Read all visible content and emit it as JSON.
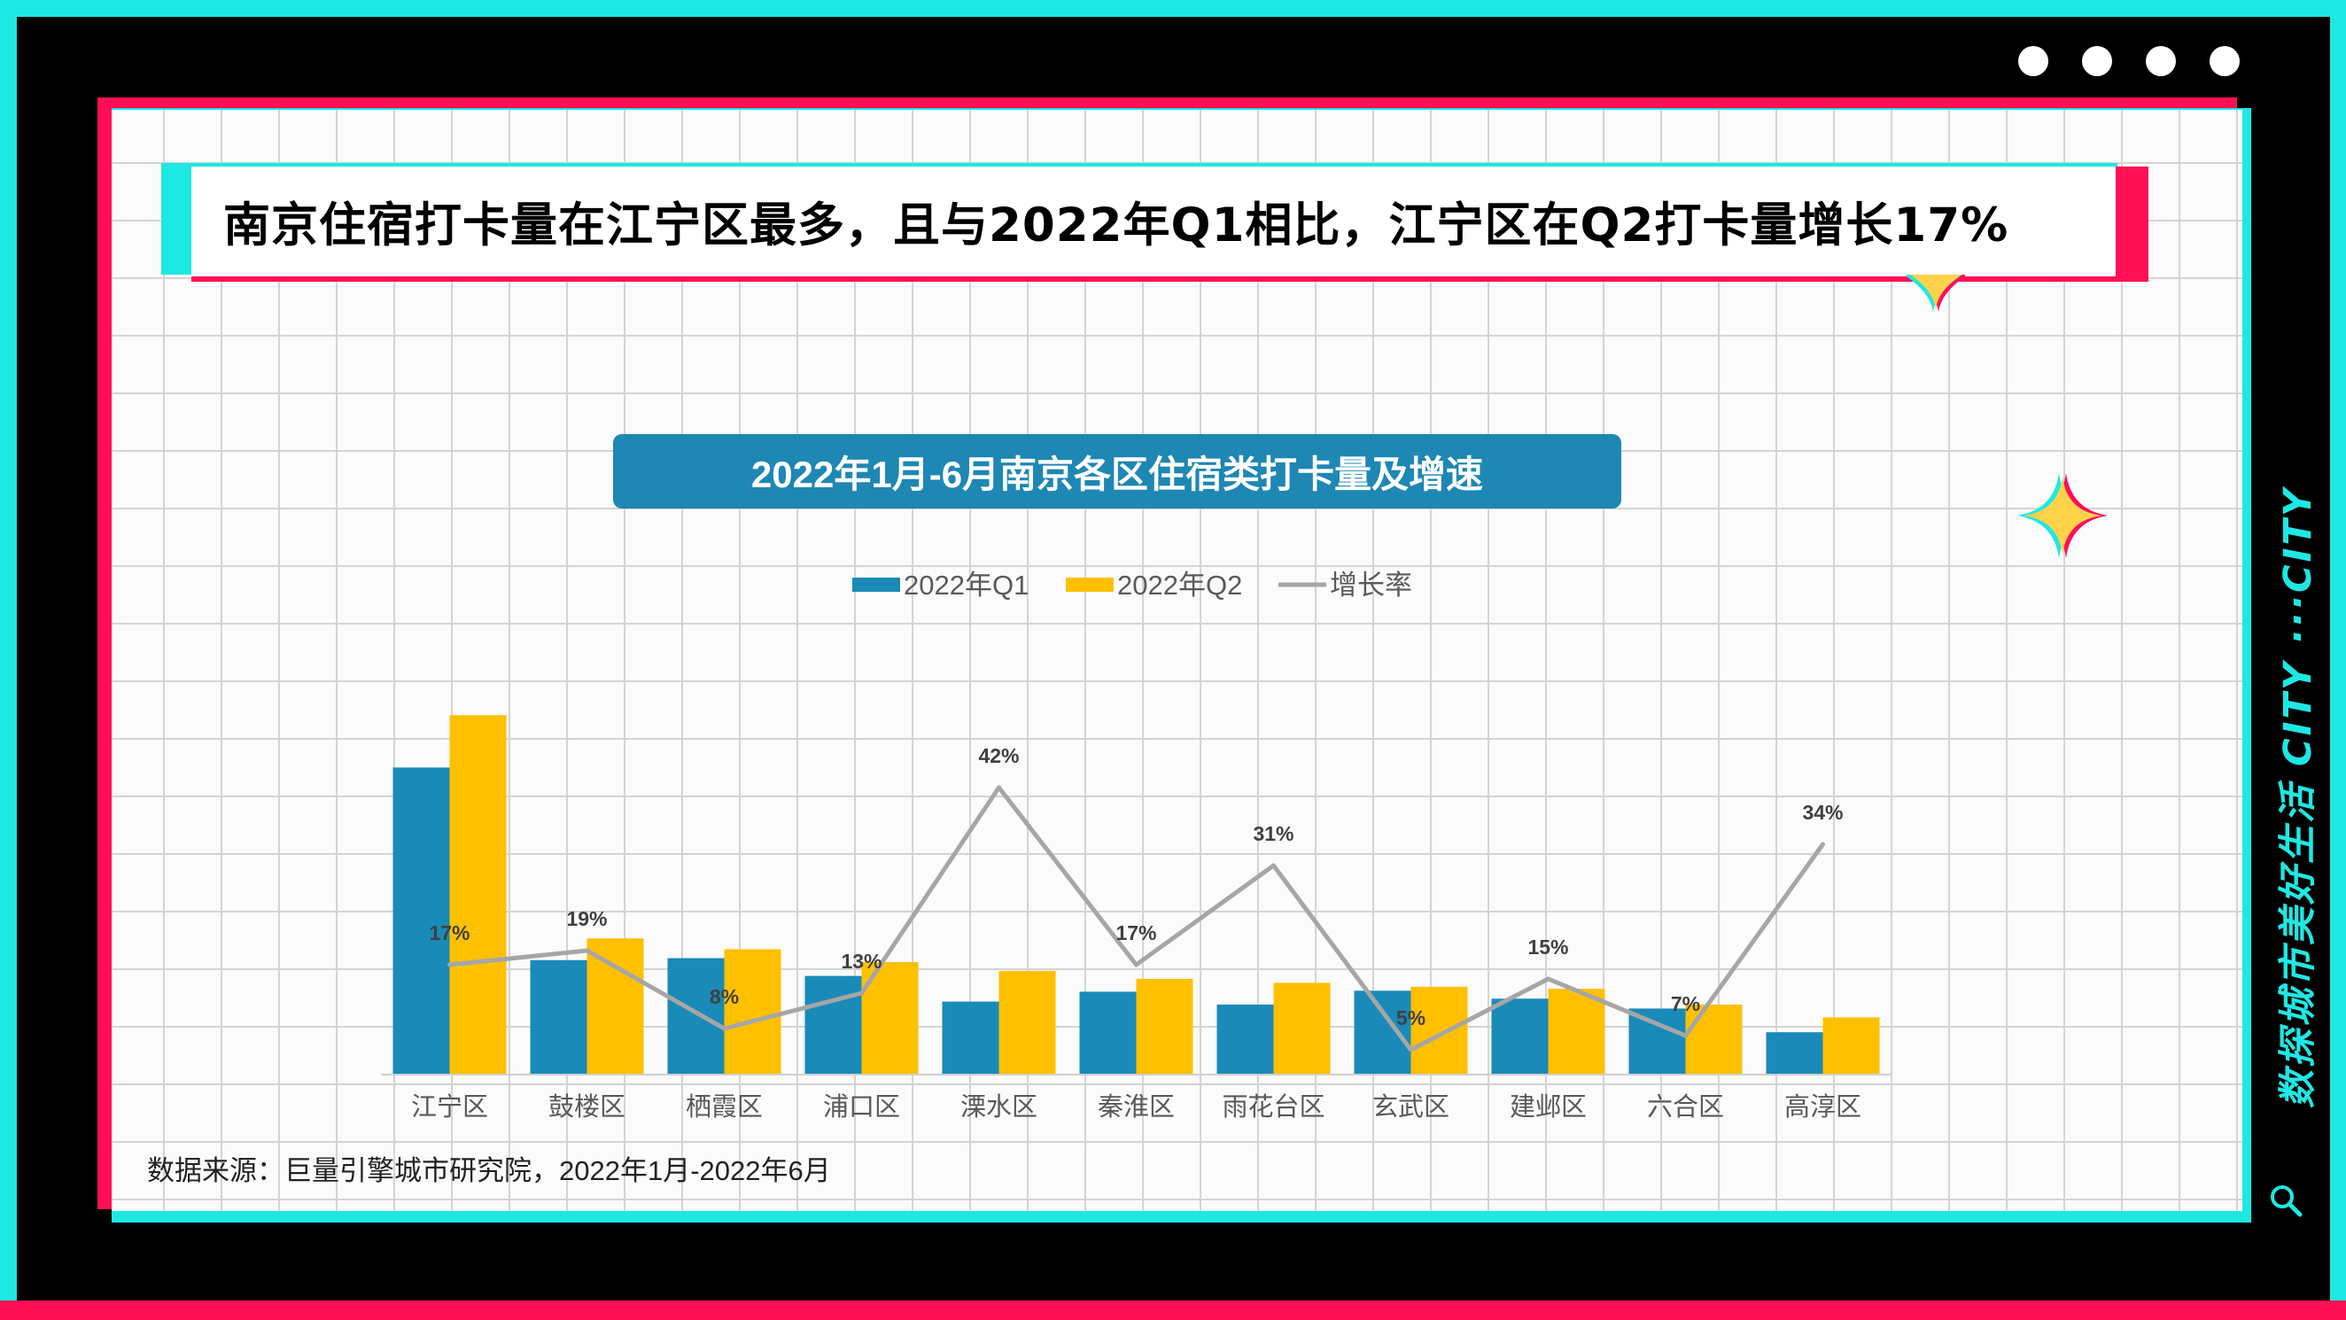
{
  "headline": "南京住宿打卡量在江宁区最多，且与2022年Q1相比，江宁区在Q2打卡量增长17%",
  "side_text": "数探城市美好生活  CITY ···CITY",
  "source": "数据来源：巨量引擎城市研究院，2022年1月-2022年6月",
  "colors": {
    "q1": "#1a8ab8",
    "q2": "#ffc000",
    "growth": "#a6a6a6",
    "cyan": "#1ee8e4",
    "red": "#ff0f55"
  },
  "chart_data": {
    "type": "bar",
    "title": "2022年1月-6月南京各区住宿类打卡量及增速",
    "categories": [
      "江宁区",
      "鼓楼区",
      "栖霞区",
      "浦口区",
      "溧水区",
      "秦淮区",
      "雨花台区",
      "玄武区",
      "建邺区",
      "六合区",
      "高淳区"
    ],
    "series": [
      {
        "name": "2022年Q1",
        "type": "bar",
        "values": [
          310,
          115,
          117,
          99,
          73,
          83,
          70,
          84,
          76,
          66,
          42
        ]
      },
      {
        "name": "2022年Q2",
        "type": "bar",
        "values": [
          363,
          137,
          126,
          113,
          104,
          96,
          92,
          88,
          86,
          70,
          57
        ]
      },
      {
        "name": "增长率",
        "type": "line",
        "values": [
          17,
          19,
          8,
          13,
          42,
          17,
          31,
          5,
          15,
          7,
          34
        ],
        "labels": [
          "17%",
          "19%",
          "8%",
          "13%",
          "42%",
          "17%",
          "31%",
          "5%",
          "15%",
          "7%",
          "34%"
        ]
      }
    ],
    "legend": {
      "position": "top-center"
    },
    "grid": false
  }
}
